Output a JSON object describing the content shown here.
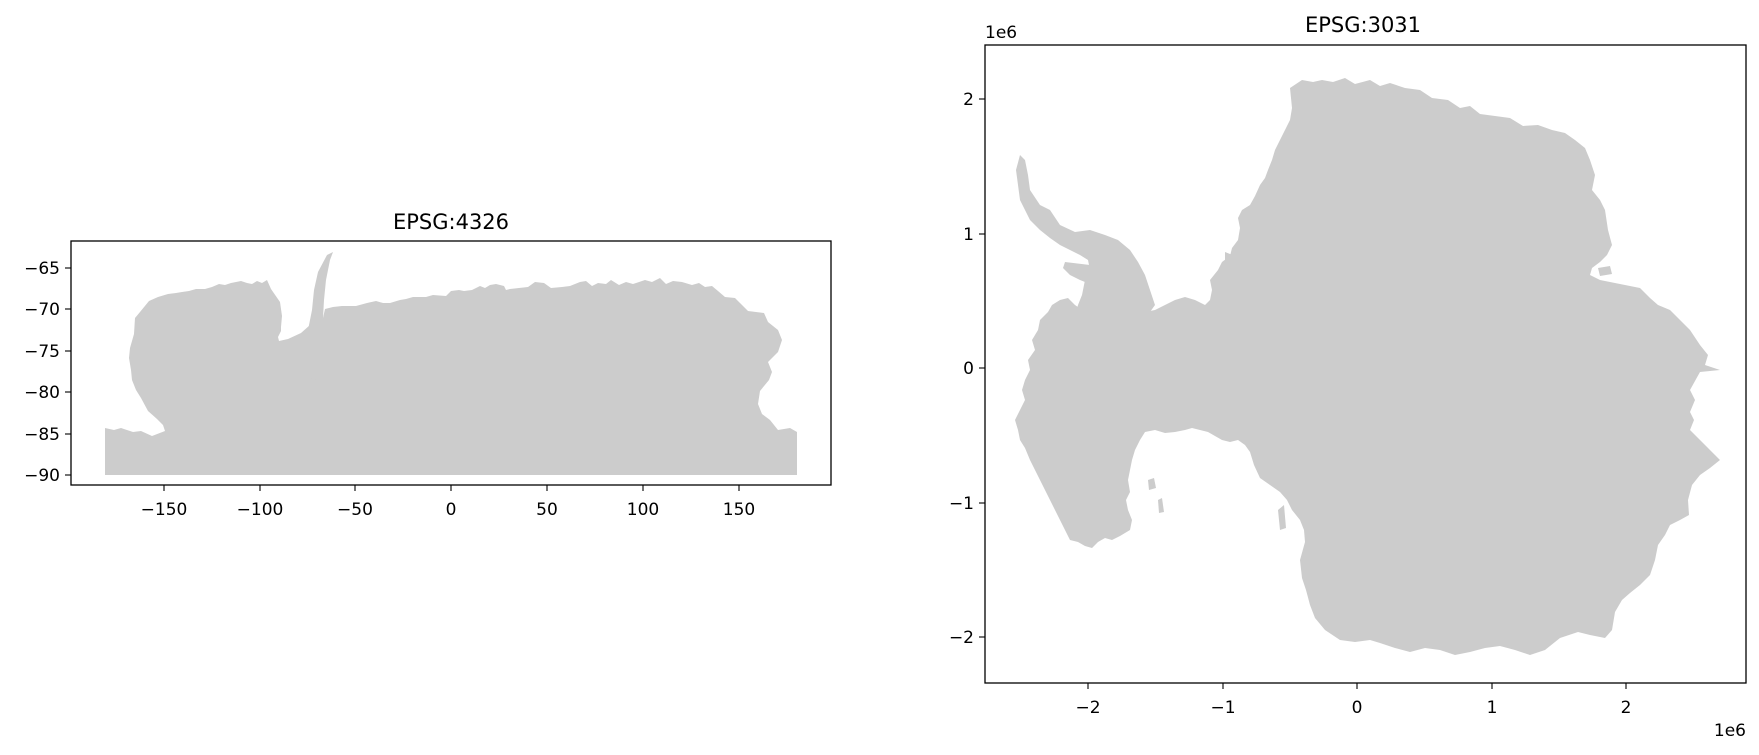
{
  "figure": {
    "panels": [
      {
        "title": "EPSG:4326",
        "x_ticks": [
          "−150",
          "−100",
          "−50",
          "0",
          "50",
          "100",
          "150"
        ],
        "y_ticks": [
          "−65",
          "−70",
          "−75",
          "−80",
          "−85",
          "−90"
        ],
        "x_offset_label": "",
        "y_offset_label": ""
      },
      {
        "title": "EPSG:3031",
        "x_ticks": [
          "−2",
          "−1",
          "0",
          "1",
          "2"
        ],
        "y_ticks": [
          "2",
          "1",
          "0",
          "−1",
          "−2"
        ],
        "x_offset_label": "1e6",
        "y_offset_label": "1e6"
      }
    ],
    "land_color": "#cccccc"
  },
  "chart_data": [
    {
      "type": "map",
      "title": "EPSG:4326",
      "xlim": [
        -198,
        198
      ],
      "ylim": [
        -91.3,
        -62.1
      ],
      "x_ticks": [
        -150,
        -100,
        -50,
        0,
        50,
        100,
        150
      ],
      "y_ticks": [
        -65,
        -70,
        -75,
        -80,
        -85,
        -90
      ],
      "feature": "Antarctica (geographic lon/lat)"
    },
    {
      "type": "map",
      "title": "EPSG:3031",
      "xlim": [
        -2800000,
        2900000
      ],
      "ylim": [
        -2350000,
        2400000
      ],
      "x_ticks": [
        -2000000,
        -1000000,
        0,
        1000000,
        2000000
      ],
      "y_ticks": [
        2000000,
        1000000,
        0,
        -1000000,
        -2000000
      ],
      "feature": "Antarctica (polar stereographic)"
    }
  ]
}
